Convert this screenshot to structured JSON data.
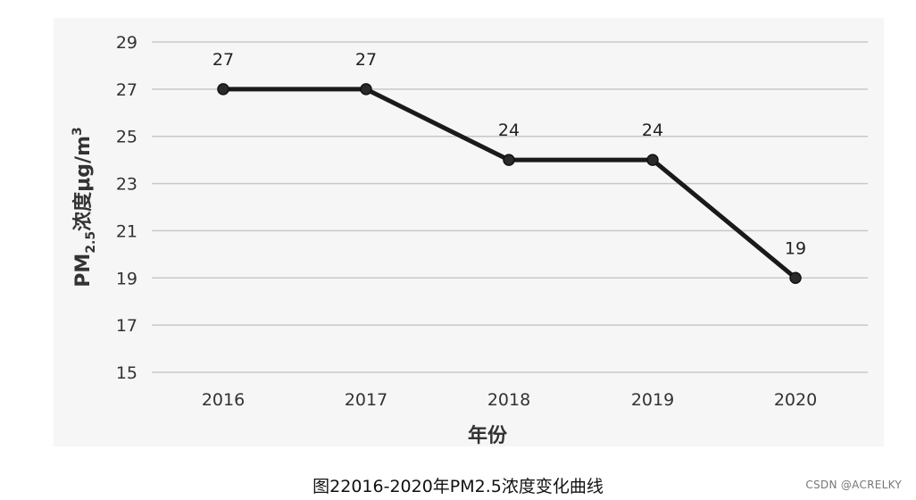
{
  "chart_data": {
    "type": "line",
    "x": [
      "2016",
      "2017",
      "2018",
      "2019",
      "2020"
    ],
    "series": [
      {
        "values": [
          27,
          27,
          24,
          24,
          19
        ]
      }
    ],
    "data_labels": [
      "27",
      "27",
      "24",
      "24",
      "19"
    ],
    "yticks": [
      "15",
      "17",
      "19",
      "21",
      "23",
      "25",
      "27",
      "29"
    ],
    "ylim": [
      15,
      29
    ],
    "xlabel": "年份",
    "ylabel": {
      "prefix": "PM",
      "subscript": "2.5",
      "middle": "浓度μg/m",
      "superscript": "3"
    },
    "grid": true,
    "line_color": "#1a1a1a",
    "grid_color": "#c8c8c8",
    "plot_background": "#f6f6f6"
  },
  "caption": "图22016-2020年PM2.5浓度变化曲线",
  "watermark": "CSDN @ACRELKY"
}
